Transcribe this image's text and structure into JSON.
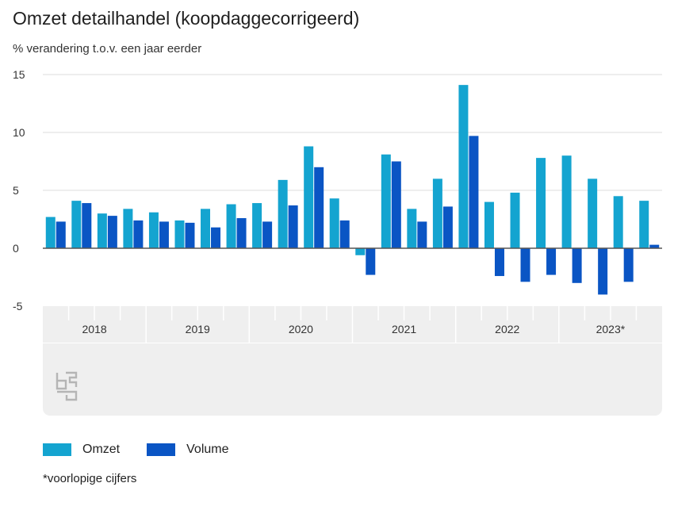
{
  "title": "Omzet detailhandel (koopdaggecorrigeerd)",
  "subtitle": "% verandering t.o.v. een jaar eerder",
  "footnote": "*voorlopige cijfers",
  "logo": "cbs-logo",
  "colors": {
    "omzet": "#14a4d0",
    "volume": "#0a55c4",
    "grid": "#dcdcdc",
    "panel": "#efefef",
    "zero": "#555555"
  },
  "chart_data": {
    "type": "bar",
    "title": "Omzet detailhandel (koopdaggecorrigeerd)",
    "ylabel": "% verandering t.o.v. een jaar eerder",
    "ylim": [
      -5,
      15
    ],
    "yticks": [
      15,
      10,
      5,
      0,
      -5
    ],
    "grid": true,
    "legend_position": "bottom-left",
    "years": [
      "2018",
      "2019",
      "2020",
      "2021",
      "2022",
      "2023*"
    ],
    "categories": [
      "2018 Q1",
      "2018 Q2",
      "2018 Q3",
      "2018 Q4",
      "2019 Q1",
      "2019 Q2",
      "2019 Q3",
      "2019 Q4",
      "2020 Q1",
      "2020 Q2",
      "2020 Q3",
      "2020 Q4",
      "2021 Q1",
      "2021 Q2",
      "2021 Q3",
      "2021 Q4",
      "2022 Q1",
      "2022 Q2",
      "2022 Q3",
      "2022 Q4",
      "2023* Q1",
      "2023* Q2",
      "2023* Q3",
      "2023* Q4"
    ],
    "series": [
      {
        "name": "Omzet",
        "values": [
          2.7,
          4.1,
          3.0,
          3.4,
          3.1,
          2.4,
          3.4,
          3.8,
          3.9,
          5.9,
          8.8,
          4.3,
          -0.6,
          8.1,
          3.4,
          6.0,
          14.1,
          4.0,
          4.8,
          7.8,
          8.0,
          6.0,
          4.5,
          4.1
        ]
      },
      {
        "name": "Volume",
        "values": [
          2.3,
          3.9,
          2.8,
          2.4,
          2.3,
          2.2,
          1.8,
          2.6,
          2.3,
          3.7,
          7.0,
          2.4,
          -2.3,
          7.5,
          2.3,
          3.6,
          9.7,
          -2.4,
          -2.9,
          -2.3,
          -3.0,
          -4.0,
          -2.9,
          0.3
        ]
      }
    ]
  }
}
